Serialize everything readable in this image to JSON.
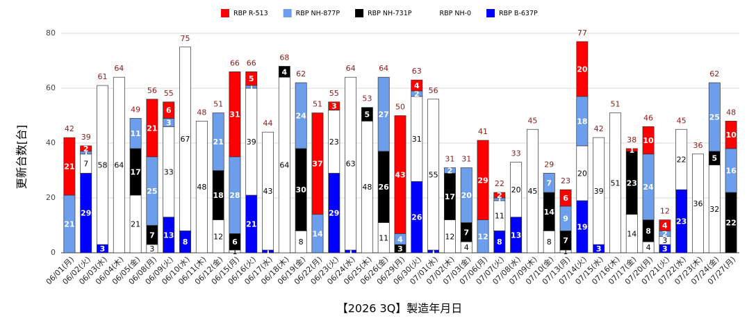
{
  "chart_data": {
    "type": "stacked-bar",
    "y_label": "更新台数[台]",
    "x_label": "【2026 3Q】製造年月日",
    "categories": [
      "06/01(月)",
      "06/02(火)",
      "06/03(水)",
      "06/04(木)",
      "06/05(金)",
      "06/08(月)",
      "06/09(火)",
      "06/10(水)",
      "06/11(木)",
      "06/12(金)",
      "06/15(月)",
      "06/16(火)",
      "06/17(水)",
      "06/18(木)",
      "06/19(金)",
      "06/22(月)",
      "06/23(火)",
      "06/24(水)",
      "06/25(木)",
      "06/26(金)",
      "06/29(月)",
      "06/30(火)",
      "07/01(水)",
      "07/02(木)",
      "07/03(金)",
      "07/06(月)",
      "07/07(火)",
      "07/08(水)",
      "07/09(木)",
      "07/10(金)",
      "07/13(月)",
      "07/14(火)",
      "07/15(水)",
      "07/16(木)",
      "07/17(金)",
      "07/20(月)",
      "07/21(火)",
      "07/22(水)",
      "07/23(木)",
      "07/24(金)",
      "07/27(月)"
    ],
    "series": [
      {
        "name": "RBP R-513",
        "color": "#ff0000",
        "values": [
          21,
          2,
          0,
          0,
          0,
          21,
          6,
          0,
          0,
          0,
          31,
          5,
          0,
          0,
          0,
          37,
          3,
          0,
          0,
          0,
          43,
          4,
          0,
          0,
          0,
          29,
          2,
          0,
          0,
          0,
          6,
          20,
          0,
          0,
          1,
          10,
          4,
          0,
          0,
          0,
          10
        ]
      },
      {
        "name": "RBP NH-877P",
        "color": "#6d9eeb",
        "values": [
          21,
          1,
          0,
          0,
          11,
          25,
          3,
          0,
          0,
          21,
          28,
          1,
          0,
          0,
          24,
          14,
          0,
          0,
          0,
          27,
          4,
          2,
          0,
          2,
          20,
          12,
          1,
          0,
          0,
          7,
          9,
          18,
          0,
          0,
          0,
          24,
          2,
          0,
          0,
          25,
          16
        ]
      },
      {
        "name": "RBP NH-731P",
        "color": "#000000",
        "values": [
          0,
          0,
          0,
          0,
          17,
          7,
          0,
          0,
          0,
          18,
          6,
          0,
          0,
          4,
          30,
          0,
          0,
          0,
          5,
          26,
          3,
          0,
          0,
          17,
          7,
          0,
          0,
          0,
          0,
          14,
          7,
          0,
          0,
          0,
          23,
          8,
          0,
          0,
          0,
          5,
          22
        ]
      },
      {
        "name": "RBP NH-0",
        "color": "#ffffff",
        "values": [
          0,
          7,
          58,
          64,
          21,
          3,
          33,
          67,
          48,
          12,
          1,
          39,
          43,
          64,
          8,
          0,
          23,
          63,
          48,
          11,
          0,
          31,
          55,
          12,
          4,
          0,
          11,
          20,
          45,
          8,
          1,
          20,
          39,
          51,
          14,
          4,
          3,
          22,
          36,
          32,
          0
        ]
      },
      {
        "name": "RBP B-637P",
        "color": "#0000ff",
        "values": [
          0,
          29,
          3,
          0,
          0,
          0,
          13,
          8,
          0,
          0,
          0,
          21,
          1,
          0,
          0,
          0,
          29,
          1,
          0,
          0,
          0,
          26,
          1,
          0,
          0,
          0,
          8,
          13,
          0,
          0,
          0,
          19,
          3,
          0,
          0,
          0,
          3,
          23,
          0,
          0,
          0
        ]
      }
    ],
    "totals": [
      42,
      39,
      61,
      64,
      49,
      56,
      55,
      75,
      48,
      51,
      66,
      66,
      44,
      68,
      62,
      51,
      55,
      64,
      53,
      64,
      50,
      63,
      56,
      31,
      31,
      41,
      22,
      33,
      45,
      29,
      23,
      77,
      42,
      51,
      38,
      46,
      12,
      45,
      36,
      62,
      48
    ],
    "ylim": [
      0,
      80
    ],
    "yticks": [
      0,
      20,
      40,
      60,
      80
    ],
    "grid": true
  }
}
